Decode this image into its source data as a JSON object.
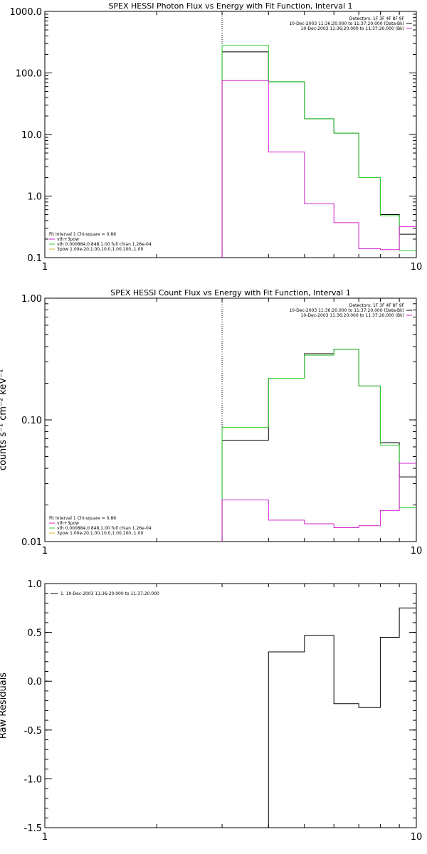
{
  "chart_data": [
    {
      "type": "line",
      "title": "SPEX HESSI Photon Flux vs Energy with Fit Function, Interval 1",
      "xlabel": "",
      "ylabel": "",
      "xscale": "log",
      "yscale": "log",
      "xlim": [
        1,
        10
      ],
      "ylim": [
        0.1,
        1000
      ],
      "xticks": [
        "1",
        "10"
      ],
      "yticks": [
        "0.1",
        "1.0",
        "10.0",
        "100.0",
        "1000.0"
      ],
      "vline_x": 3,
      "info": [
        "Detectors: 1F 3F 4F 8F 9F",
        "10-Dec-2003 11:36:20.000 to 11:37:20.000 (Data-Bk)",
        "10-Dec-2003 11:36:20.000 to 11:37:20.000 (Bk)"
      ],
      "info_colors": [
        "#000000",
        "#000000",
        "#d020d0"
      ],
      "fit_text": "Fit Interval 1    Chi-square = 0.86",
      "legend": [
        {
          "label": "vth+3pow",
          "color": "#d020d0"
        },
        {
          "label": "vth 0.000884,0.848,1.00   full chian 1.26e-04",
          "color": "#30d030"
        },
        {
          "label": "3pow 1.00e-20,1.00,10.0,1.00,100.,1.00",
          "color": "#d0b030"
        }
      ],
      "edges": [
        3,
        4,
        5,
        6,
        7,
        8,
        9,
        10
      ],
      "series": [
        {
          "name": "10-Dec-2003 11:36:20.000 to 11:37:20.000 (Data-Bk)",
          "color": "#000000",
          "values": [
            220,
            72,
            18,
            10.5,
            2.0,
            0.5,
            0.24
          ]
        },
        {
          "name": "",
          "color": "#30d030",
          "values": [
            280,
            72,
            18,
            10.5,
            2.0,
            0.48,
            0.13
          ]
        },
        {
          "name": "10-Dec-2003 11:36:20.000 to 11:37:20.000 (Bk)",
          "color": "#d020d0",
          "values": [
            75,
            5.2,
            0.75,
            0.37,
            0.14,
            0.135,
            0.32
          ]
        }
      ]
    },
    {
      "type": "line",
      "title": "SPEX HESSI Count Flux vs Energy with Fit Function, Interval 1",
      "xlabel": "",
      "ylabel": "counts s⁻¹ cm⁻² keV⁻¹",
      "xscale": "log",
      "yscale": "log",
      "xlim": [
        1,
        10
      ],
      "ylim": [
        0.01,
        1
      ],
      "xticks": [
        "1",
        "10"
      ],
      "yticks": [
        "0.01",
        "0.10",
        "1.00"
      ],
      "vline_x": 3,
      "info": [
        "Detectors: 1F 3F 4F 8F 9F",
        "10-Dec-2003 11:36:20.000 to 11:37:20.000 (Data-Bk)",
        "10-Dec-2003 11:36:20.000 to 11:37:20.000 (Bk)"
      ],
      "info_colors": [
        "#000000",
        "#000000",
        "#d020d0"
      ],
      "fit_text": "Fit Interval 1    Chi-square = 0.86",
      "legend": [
        {
          "label": "vth+3pow",
          "color": "#d020d0"
        },
        {
          "label": "vth 0.000884,0.848,1.00   full chian 1.26e-04",
          "color": "#30d030"
        },
        {
          "label": "3pow 1.00e-20,1.00,10.0,1.00,100.,1.00",
          "color": "#d0b030"
        }
      ],
      "edges": [
        3,
        4,
        5,
        6,
        7,
        8,
        9,
        10
      ],
      "series": [
        {
          "name": "10-Dec-2003 11:36:20.000 to 11:37:20.000 (Data-Bk)",
          "color": "#000000",
          "values": [
            0.068,
            0.22,
            0.35,
            0.38,
            0.19,
            0.065,
            0.034
          ]
        },
        {
          "name": "",
          "color": "#30d030",
          "values": [
            0.087,
            0.22,
            0.34,
            0.38,
            0.19,
            0.062,
            0.019
          ]
        },
        {
          "name": "10-Dec-2003 11:36:20.000 to 11:37:20.000 (Bk)",
          "color": "#d020d0",
          "values": [
            0.022,
            0.015,
            0.014,
            0.013,
            0.0135,
            0.018,
            0.044
          ]
        }
      ]
    },
    {
      "type": "line",
      "title": "",
      "xlabel": "",
      "ylabel": "Raw Residuals",
      "xscale": "log",
      "yscale": "linear",
      "xlim": [
        1,
        10
      ],
      "ylim": [
        -1.5,
        1.0
      ],
      "xticks": [
        "1",
        "10"
      ],
      "yticks": [
        "-1.5",
        "-1.0",
        "-0.5",
        "0.0",
        "0.5",
        "1.0"
      ],
      "legend": [
        {
          "label": "1. 10-Dec-2003 11:36:20.000 to 11:37:20.000",
          "color": "#000000"
        }
      ],
      "edges": [
        4,
        5,
        6,
        7,
        8,
        9,
        10
      ],
      "series": [
        {
          "name": "",
          "color": "#000000",
          "values": [
            0.3,
            0.47,
            -0.23,
            -0.27,
            0.45,
            0.75
          ],
          "start_from": -1.5
        }
      ]
    }
  ]
}
